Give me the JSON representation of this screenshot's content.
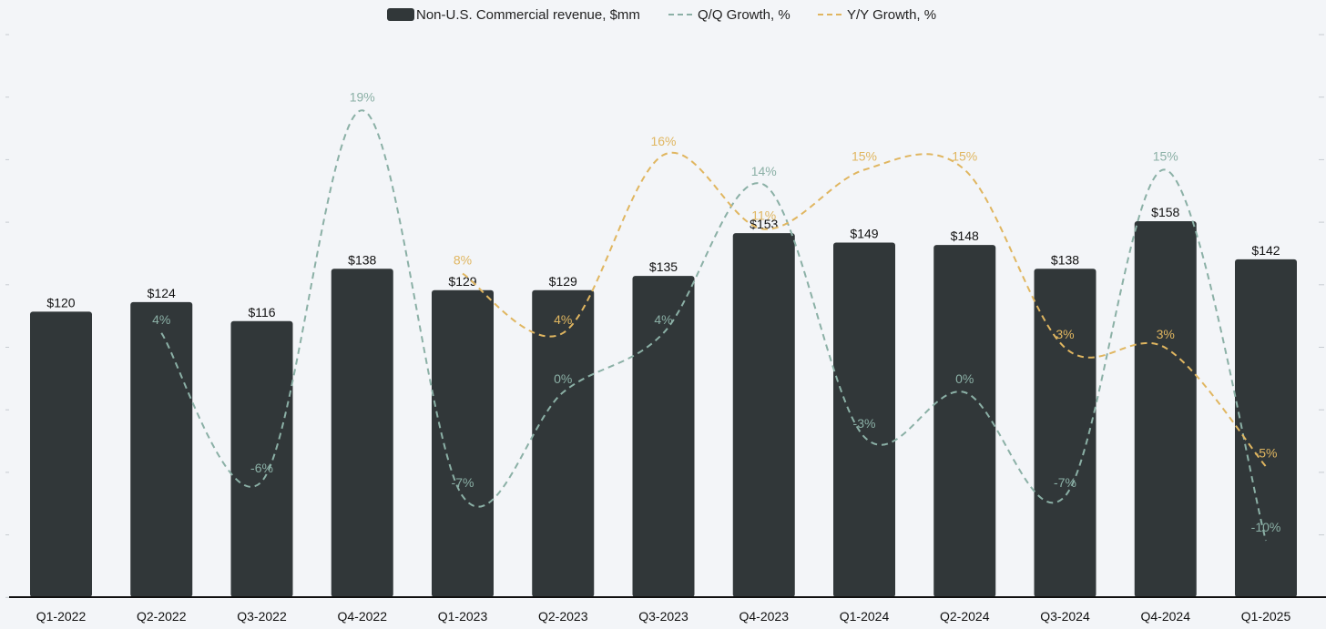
{
  "chart_data": {
    "type": "bar",
    "categories": [
      "Q1-2022",
      "Q2-2022",
      "Q3-2022",
      "Q4-2022",
      "Q1-2023",
      "Q2-2023",
      "Q3-2023",
      "Q4-2023",
      "Q1-2024",
      "Q2-2024",
      "Q3-2024",
      "Q4-2024",
      "Q1-2025"
    ],
    "series": [
      {
        "name": "Non-U.S. Commercial revenue, $mm",
        "kind": "bar",
        "values": [
          120,
          124,
          116,
          138,
          129,
          129,
          135,
          153,
          149,
          148,
          138,
          158,
          142
        ],
        "labels": [
          "$120",
          "$124",
          "$116",
          "$138",
          "$129",
          "$129",
          "$135",
          "$153",
          "$149",
          "$148",
          "$138",
          "$158",
          "$142"
        ],
        "color": "#313739"
      },
      {
        "name": "Q/Q Growth, %",
        "kind": "line",
        "style": "dashed",
        "values": [
          null,
          4,
          -6,
          19,
          -7,
          0,
          4,
          14,
          -3,
          0,
          -7,
          15,
          -10
        ],
        "labels": [
          null,
          "4%",
          "-6%",
          "19%",
          "-7%",
          "0%",
          "4%",
          "14%",
          "-3%",
          "0%",
          "-7%",
          "15%",
          "-10%"
        ],
        "color": "#8bb0a6"
      },
      {
        "name": "Y/Y Growth, %",
        "kind": "line",
        "style": "dashed",
        "values": [
          null,
          null,
          null,
          null,
          8,
          4,
          16,
          11,
          15,
          15,
          3,
          3,
          -5
        ],
        "labels": [
          null,
          null,
          null,
          null,
          "8%",
          "4%",
          "16%",
          "11%",
          "15%",
          "15%",
          "3%",
          "3%",
          "-5%"
        ],
        "color": "#e0b660"
      }
    ],
    "title": "",
    "xlabel": "",
    "ylabel": "",
    "ylim": [
      0,
      175
    ],
    "y2lim": [
      -14,
      24
    ],
    "legend_position": "top-center",
    "grid": false
  }
}
